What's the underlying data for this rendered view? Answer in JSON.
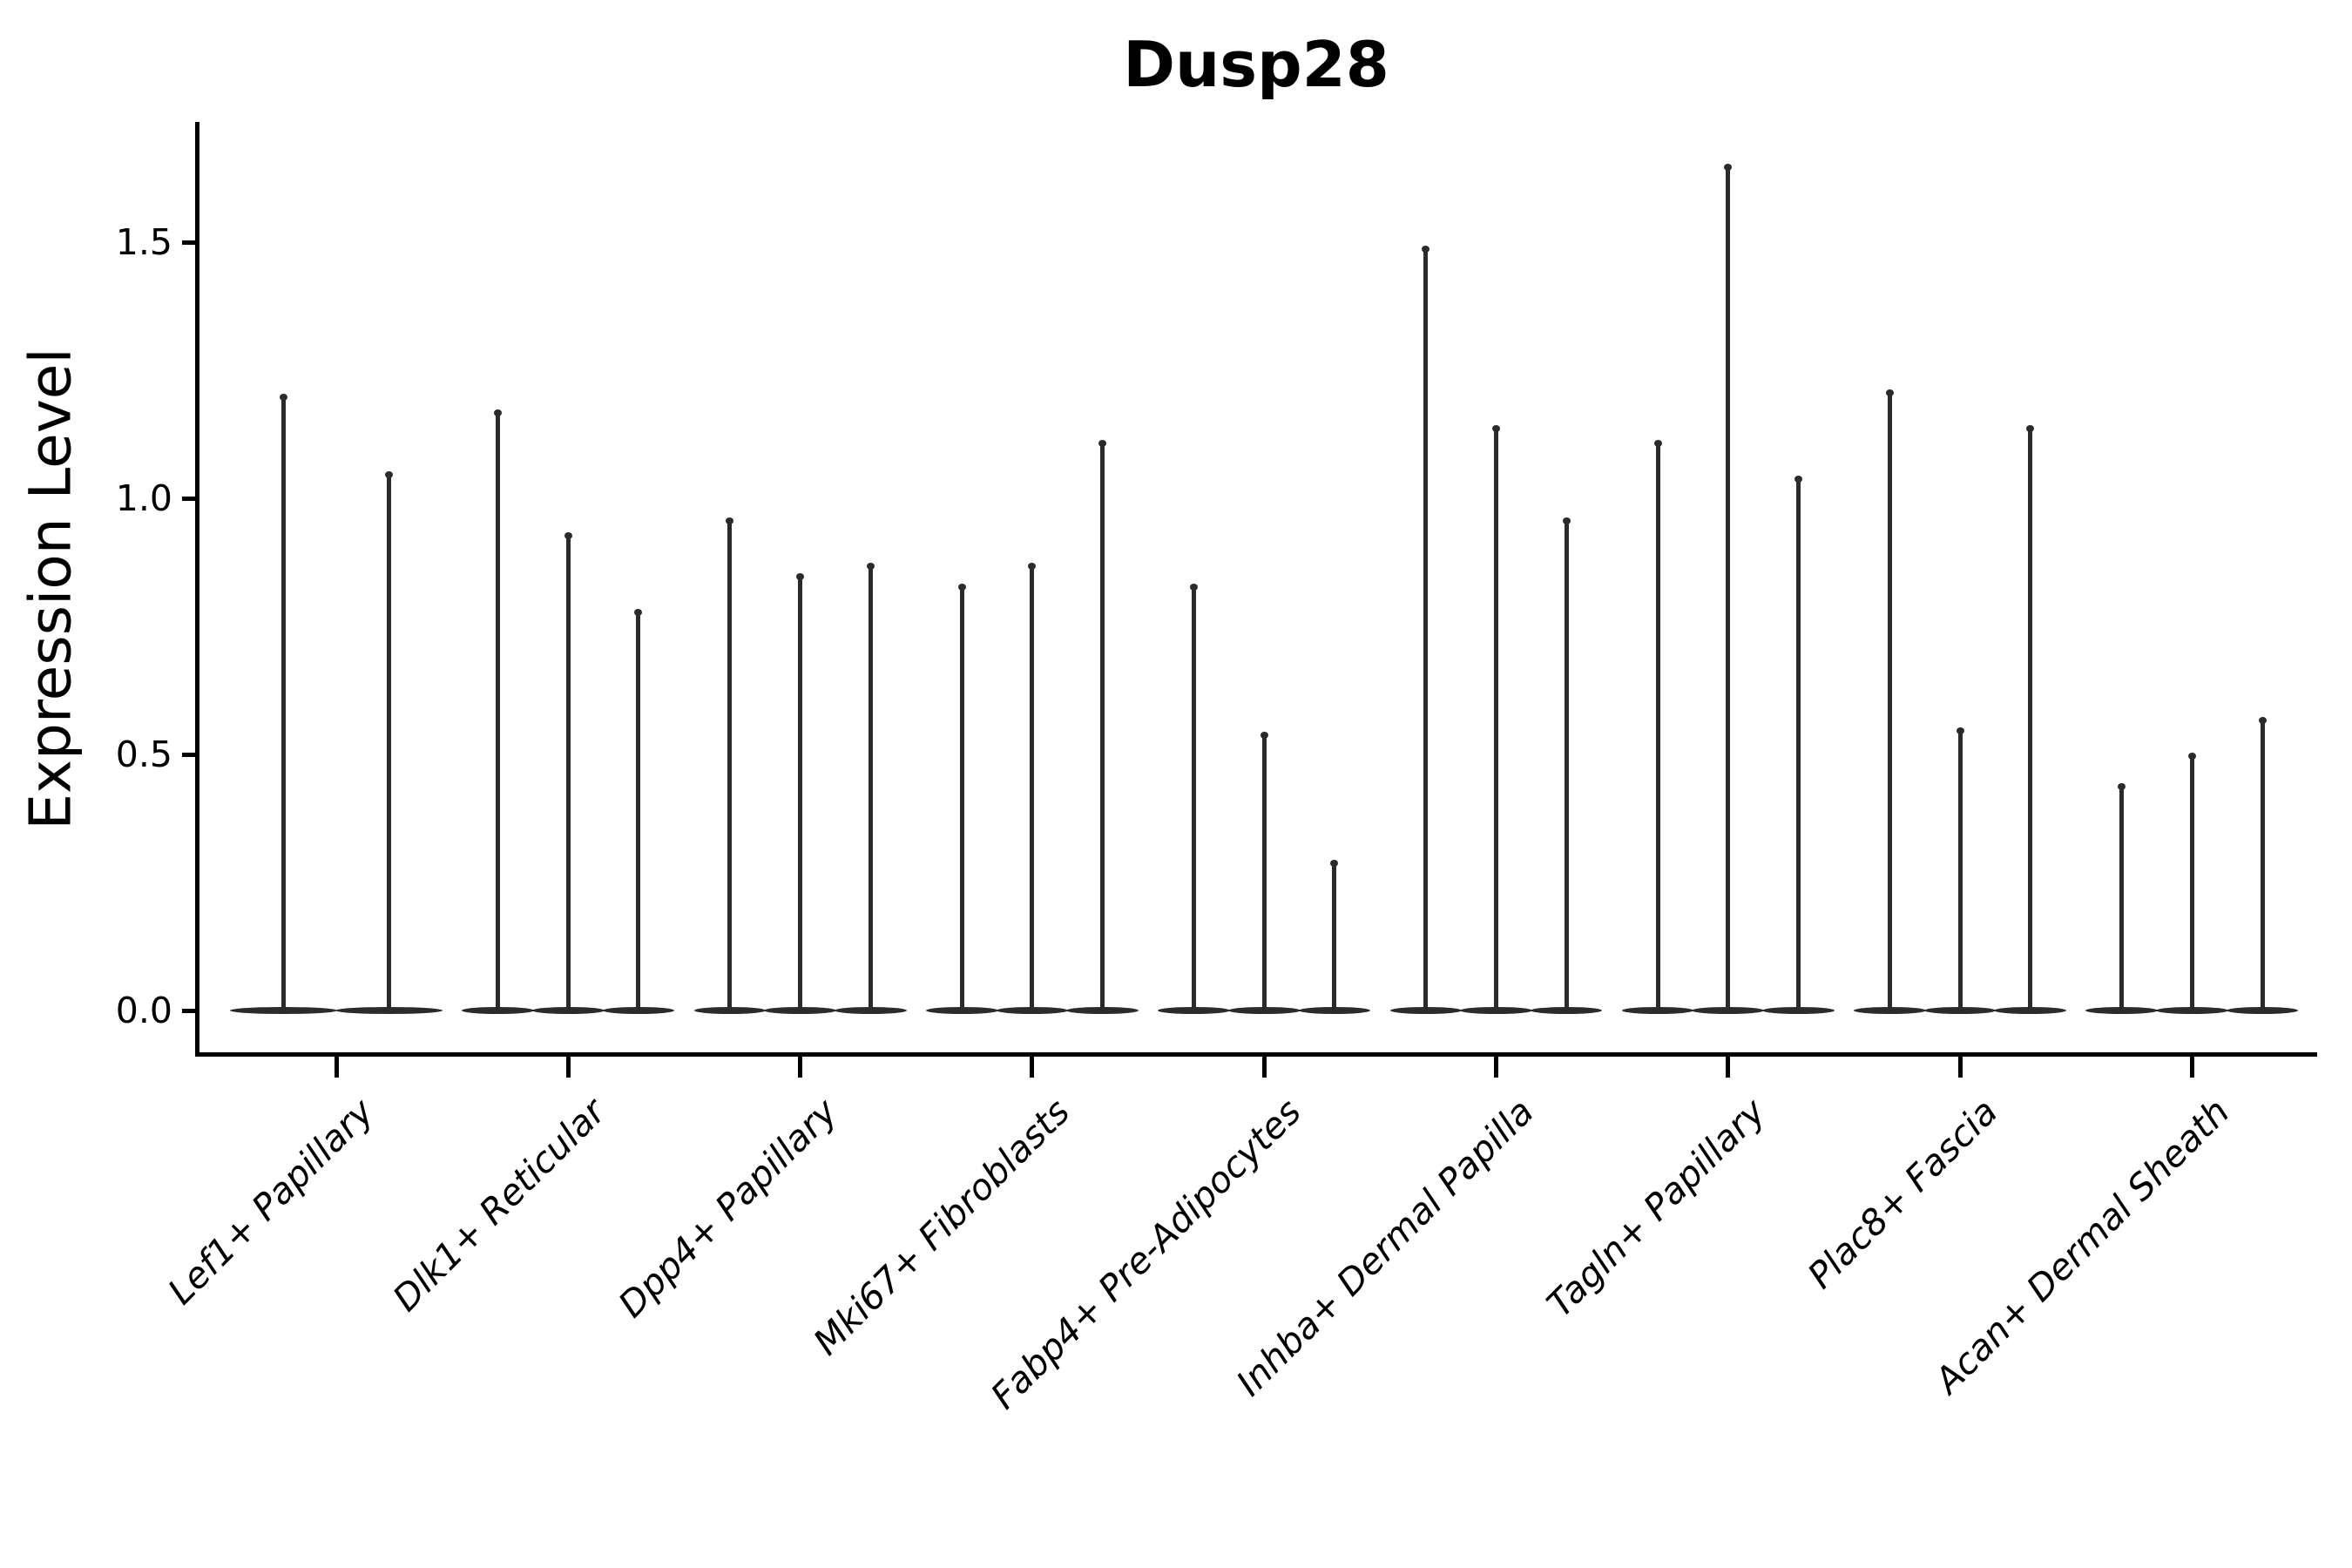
{
  "chart_data": {
    "type": "violin",
    "title": "Dusp28",
    "ylabel": "Expression Level",
    "xlabel": "",
    "yticks": [
      {
        "value": 0.0,
        "label": "0.0"
      },
      {
        "value": 0.5,
        "label": "0.5"
      },
      {
        "value": 1.0,
        "label": "1.0"
      },
      {
        "value": 1.5,
        "label": "1.5"
      }
    ],
    "ylim": [
      0.0,
      1.73
    ],
    "grid": false,
    "legend": "none",
    "violin_color": "#2b2b2b",
    "axis_color": "#000000",
    "background_color": "#ffffff",
    "categories": [
      "Lef1+ Papillary",
      "Dlk1+ Reticular",
      "Dpp4+ Papillary",
      "Mki67+ Fibroblasts",
      "Fabp4+ Pre-Adipocytes",
      "Inhba+ Dermal Papilla",
      "Tagln+ Papillary",
      "Plac8+ Fascia",
      "Acan+ Dermal Sheath"
    ],
    "groups": [
      {
        "category": "Lef1+ Papillary",
        "violin_maxima": [
          1.2,
          1.05
        ]
      },
      {
        "category": "Dlk1+ Reticular",
        "violin_maxima": [
          1.17,
          0.93,
          0.78
        ]
      },
      {
        "category": "Dpp4+ Papillary",
        "violin_maxima": [
          0.96,
          0.85,
          0.87
        ]
      },
      {
        "category": "Mki67+ Fibroblasts",
        "violin_maxima": [
          0.83,
          0.87,
          1.11
        ]
      },
      {
        "category": "Fabp4+ Pre-Adipocytes",
        "violin_maxima": [
          0.83,
          0.54,
          0.29
        ]
      },
      {
        "category": "Inhba+ Dermal Papilla",
        "violin_maxima": [
          1.49,
          1.14,
          0.96
        ]
      },
      {
        "category": "Tagln+ Papillary",
        "violin_maxima": [
          1.11,
          1.65,
          1.04
        ]
      },
      {
        "category": "Plac8+ Fascia",
        "violin_maxima": [
          1.21,
          0.55,
          1.14
        ]
      },
      {
        "category": "Acan+ Dermal Sheath",
        "violin_maxima": [
          0.44,
          0.5,
          0.57
        ]
      }
    ],
    "violin_shape_note": "density spike at each maximum with flat zero-inflated base at y=0"
  }
}
